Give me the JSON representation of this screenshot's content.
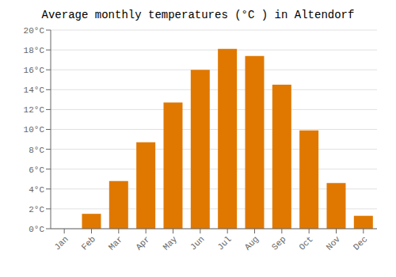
{
  "chart_data": {
    "type": "bar",
    "title": "Average monthly temperatures (°C ) in Altendorf",
    "categories": [
      "Jan",
      "Feb",
      "Mar",
      "Apr",
      "May",
      "Jun",
      "Jul",
      "Aug",
      "Sep",
      "Oct",
      "Nov",
      "Dec"
    ],
    "values": [
      0.0,
      1.5,
      4.8,
      8.7,
      12.7,
      16.0,
      18.1,
      17.4,
      14.5,
      9.9,
      4.6,
      1.3
    ],
    "color": "#E07800",
    "ylim": [
      0,
      20
    ],
    "yticks": [
      {
        "value": 0,
        "label": "0°C"
      },
      {
        "value": 2,
        "label": "2°C"
      },
      {
        "value": 4,
        "label": "4°C"
      },
      {
        "value": 6,
        "label": "6°C"
      },
      {
        "value": 8,
        "label": "8°C"
      },
      {
        "value": 10,
        "label": "10°C"
      },
      {
        "value": 12,
        "label": "12°C"
      },
      {
        "value": 14,
        "label": "14°C"
      },
      {
        "value": 16,
        "label": "16°C"
      },
      {
        "value": 18,
        "label": "18°C"
      },
      {
        "value": 20,
        "label": "20°C"
      }
    ],
    "grid": true
  }
}
